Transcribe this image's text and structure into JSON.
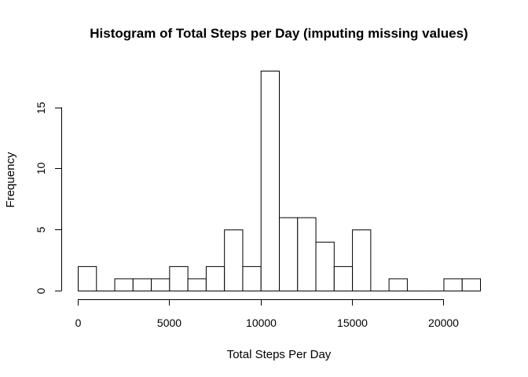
{
  "chart_data": {
    "type": "bar",
    "title": "Histogram of Total Steps per Day (imputing missing values)",
    "xlabel": "Total Steps Per Day",
    "ylabel": "Frequency",
    "bin_width": 1000,
    "bins": [
      {
        "x0": 0,
        "x1": 1000,
        "count": 2
      },
      {
        "x0": 1000,
        "x1": 2000,
        "count": 0
      },
      {
        "x0": 2000,
        "x1": 3000,
        "count": 1
      },
      {
        "x0": 3000,
        "x1": 4000,
        "count": 1
      },
      {
        "x0": 4000,
        "x1": 5000,
        "count": 1
      },
      {
        "x0": 5000,
        "x1": 6000,
        "count": 2
      },
      {
        "x0": 6000,
        "x1": 7000,
        "count": 1
      },
      {
        "x0": 7000,
        "x1": 8000,
        "count": 2
      },
      {
        "x0": 8000,
        "x1": 9000,
        "count": 5
      },
      {
        "x0": 9000,
        "x1": 10000,
        "count": 2
      },
      {
        "x0": 10000,
        "x1": 11000,
        "count": 18
      },
      {
        "x0": 11000,
        "x1": 12000,
        "count": 6
      },
      {
        "x0": 12000,
        "x1": 13000,
        "count": 6
      },
      {
        "x0": 13000,
        "x1": 14000,
        "count": 4
      },
      {
        "x0": 14000,
        "x1": 15000,
        "count": 2
      },
      {
        "x0": 15000,
        "x1": 16000,
        "count": 5
      },
      {
        "x0": 16000,
        "x1": 17000,
        "count": 0
      },
      {
        "x0": 17000,
        "x1": 18000,
        "count": 1
      },
      {
        "x0": 18000,
        "x1": 19000,
        "count": 0
      },
      {
        "x0": 19000,
        "x1": 20000,
        "count": 0
      },
      {
        "x0": 20000,
        "x1": 21000,
        "count": 1
      },
      {
        "x0": 21000,
        "x1": 22000,
        "count": 1
      }
    ],
    "xlim": [
      0,
      22000
    ],
    "ylim": [
      0,
      18
    ],
    "xticks": [
      0,
      5000,
      10000,
      15000,
      20000
    ],
    "xtick_labels": [
      "0",
      "5000",
      "10000",
      "15000",
      "20000"
    ],
    "yticks": [
      0,
      5,
      10,
      15
    ],
    "ytick_labels": [
      "0",
      "5",
      "10",
      "15"
    ],
    "grid": false,
    "legend": "none",
    "bar_fill": "#ffffff",
    "bar_stroke": "#000000"
  }
}
